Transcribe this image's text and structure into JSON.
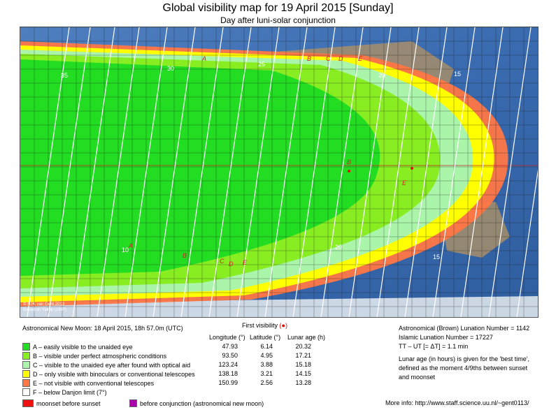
{
  "title": "Global visibility map for 19 April 2015 [Sunday]",
  "subtitle": "Day after luni-solar conjunction",
  "map": {
    "credit_line1": "© R.H. van Gent 2013",
    "credit_line2": "Based on Yallop (1997)",
    "zone_letters": [
      "A",
      "B",
      "C",
      "D",
      "E",
      "B",
      "C",
      "D",
      "E",
      "A",
      "B",
      "C",
      "D",
      "E"
    ],
    "contour_labels": [
      "35",
      "30",
      "25",
      "20",
      "15",
      "10",
      "15",
      "20"
    ]
  },
  "new_moon": "Astronomical New Moon: 18 April 2015, 18h 57.0m (UTC)",
  "first_visibility": {
    "label": "First visibility",
    "marker": "(●)",
    "headers": [
      "Longitude (°)",
      "Latitude (°)",
      "Lunar age (h)"
    ],
    "rows": [
      {
        "desc": "A – easily visible to the unaided eye",
        "color": "#22dd22",
        "lon": "47.93",
        "lat": "6.14",
        "age": "20.32"
      },
      {
        "desc": "B – visible under perfect atmospheric conditions",
        "color": "#88ee22",
        "lon": "93.50",
        "lat": "4.95",
        "age": "17.21"
      },
      {
        "desc": "C – visible to the unaided eye after found with optical aid",
        "color": "#aaf5aa",
        "lon": "123.24",
        "lat": "3.88",
        "age": "15.18"
      },
      {
        "desc": "D – only visible with binoculars or conventional telescopes",
        "color": "#ffff00",
        "lon": "138.18",
        "lat": "3.21",
        "age": "14.15"
      },
      {
        "desc": "E – not visible with conventional telescopes",
        "color": "#ff7744",
        "lon": "150.99",
        "lat": "2.56",
        "age": "13.28"
      },
      {
        "desc": "F – below Danjon limit (7°)",
        "color": "#ffffff",
        "lon": "",
        "lat": "",
        "age": ""
      }
    ]
  },
  "footer_legend": {
    "moonset": {
      "label": "moonset before sunset",
      "color": "#ee1111"
    },
    "conjunction": {
      "label": "before conjunction (astronomical new moon)",
      "color": "#aa00aa"
    }
  },
  "right_info": {
    "brown": "Astronomical (Brown) Lunation Number = 1142",
    "islamic": "Islamic Lunation Number = 17227",
    "tt": "TT – UT [= ΔT] = 1.1 min",
    "note1": "Lunar age (in hours) is given for the 'best time',",
    "note2": "defined as the moment 4/9ths between sunset",
    "note3": "and moonset",
    "more": "More info: http://www.staff.science.uu.nl/~gent0113/"
  }
}
